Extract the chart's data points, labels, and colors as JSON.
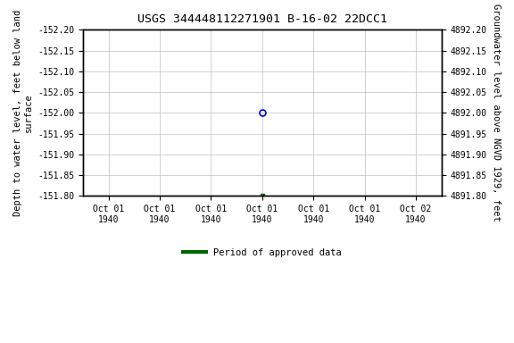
{
  "title": "USGS 344448112271901 B-16-02 22DCC1",
  "ylabel_left": "Depth to water level, feet below land\nsurface",
  "ylabel_right": "Groundwater level above NGVD 1929, feet",
  "ylim_left": [
    -152.2,
    -151.8
  ],
  "ylim_right": [
    4891.8,
    4892.2
  ],
  "yticks_left": [
    -152.2,
    -152.15,
    -152.1,
    -152.05,
    -152.0,
    -151.95,
    -151.9,
    -151.85,
    -151.8
  ],
  "yticks_right": [
    4891.8,
    4891.85,
    4891.9,
    4891.95,
    4892.0,
    4892.05,
    4892.1,
    4892.15,
    4892.2
  ],
  "data_point_date": "1940-10-01",
  "data_point_value": -152.0,
  "data_point_color": "#0000cc",
  "tick_marker_date": "1940-10-01",
  "tick_marker_value": -151.8,
  "tick_marker_color": "#006400",
  "background_color": "#ffffff",
  "grid_color": "#c0c0c0",
  "legend_label": "Period of approved data",
  "legend_color": "#006400",
  "font_family": "monospace",
  "title_fontsize": 9.5,
  "label_fontsize": 7.5,
  "tick_fontsize": 7.0,
  "x_tick_labels": [
    "Oct 01\n1940",
    "Oct 01\n1940",
    "Oct 01\n1940",
    "Oct 01\n1940",
    "Oct 01\n1940",
    "Oct 01\n1940",
    "Oct 02\n1940"
  ]
}
